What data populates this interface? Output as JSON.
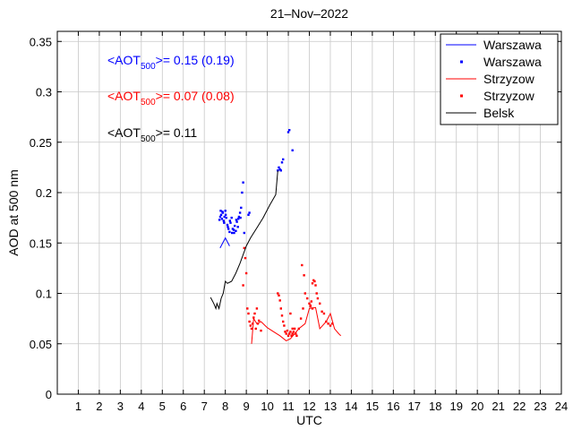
{
  "chart_data": {
    "type": "scatter",
    "title": "21–Nov–2022",
    "xlabel": "UTC",
    "ylabel": "AOD at 500 nm",
    "xlim": [
      0,
      24
    ],
    "ylim": [
      0,
      0.36
    ],
    "xticks": [
      "1",
      "2",
      "3",
      "4",
      "5",
      "6",
      "7",
      "8",
      "9",
      "10",
      "11",
      "12",
      "13",
      "14",
      "15",
      "16",
      "17",
      "18",
      "19",
      "20",
      "21",
      "22",
      "23",
      "24"
    ],
    "yticks": [
      "0",
      "0.05",
      "0.1",
      "0.15",
      "0.2",
      "0.25",
      "0.3",
      "0.35"
    ],
    "grid": true,
    "legend_position": "top-right",
    "annotations": [
      {
        "pre": "<AOT",
        "sub": "500",
        "post": ">= 0.15 (0.19)",
        "color": "#0000ff"
      },
      {
        "pre": "<AOT",
        "sub": "500",
        "post": ">= 0.07 (0.08)",
        "color": "#ff0000"
      },
      {
        "pre": "<AOT",
        "sub": "500",
        "post": ">= 0.11",
        "color": "#000000"
      }
    ],
    "series": [
      {
        "name": "Warszawa",
        "style": "line",
        "color": "#0000ff",
        "x": [
          7.75,
          8.0,
          8.2
        ],
        "y": [
          0.145,
          0.155,
          0.147
        ]
      },
      {
        "name": "Warszawa",
        "style": "points",
        "color": "#0000ff",
        "x": [
          7.72,
          7.76,
          7.8,
          7.84,
          7.88,
          7.92,
          7.96,
          8.0,
          8.05,
          8.1,
          8.15,
          8.2,
          8.25,
          8.3,
          8.35,
          8.4,
          8.45,
          8.5,
          8.55,
          8.6,
          8.65,
          8.7,
          8.75,
          7.78,
          7.86,
          7.94,
          8.02,
          8.12,
          8.22,
          8.32,
          8.42,
          8.52,
          8.62,
          8.72,
          8.8,
          8.85,
          9.1,
          9.15,
          10.5,
          10.55,
          10.6,
          10.65,
          10.7,
          10.75,
          11.0,
          11.05,
          11.2,
          8.9
        ],
        "y": [
          0.173,
          0.176,
          0.178,
          0.174,
          0.18,
          0.172,
          0.176,
          0.182,
          0.175,
          0.168,
          0.164,
          0.161,
          0.17,
          0.175,
          0.164,
          0.163,
          0.167,
          0.162,
          0.171,
          0.166,
          0.176,
          0.18,
          0.185,
          0.182,
          0.181,
          0.17,
          0.178,
          0.166,
          0.172,
          0.16,
          0.16,
          0.173,
          0.174,
          0.175,
          0.2,
          0.21,
          0.178,
          0.18,
          0.222,
          0.225,
          0.223,
          0.222,
          0.23,
          0.233,
          0.26,
          0.262,
          0.242,
          0.16
        ]
      },
      {
        "name": "Strzyzow",
        "style": "line",
        "color": "#ff0000",
        "x": [
          9.25,
          9.35,
          9.5,
          9.7,
          10.0,
          10.3,
          10.6,
          10.9,
          11.1,
          11.3,
          11.5,
          11.8,
          12.0,
          12.3,
          12.5,
          12.8,
          13.0,
          13.2,
          13.4,
          13.5
        ],
        "y": [
          0.05,
          0.075,
          0.07,
          0.072,
          0.066,
          0.062,
          0.058,
          0.053,
          0.055,
          0.06,
          0.065,
          0.07,
          0.085,
          0.086,
          0.065,
          0.072,
          0.08,
          0.065,
          0.06,
          0.058
        ]
      },
      {
        "name": "Strzyzow",
        "style": "points",
        "color": "#ff0000",
        "x": [
          8.85,
          8.9,
          8.95,
          9.0,
          9.05,
          9.1,
          9.15,
          9.2,
          9.25,
          9.3,
          9.35,
          9.4,
          9.5,
          9.6,
          9.7,
          10.5,
          10.55,
          10.6,
          10.65,
          10.7,
          10.75,
          10.8,
          10.85,
          10.9,
          10.95,
          11.0,
          11.05,
          11.1,
          11.15,
          11.2,
          11.25,
          11.3,
          11.35,
          11.4,
          11.5,
          11.6,
          11.7,
          11.8,
          11.9,
          12.0,
          12.05,
          12.1,
          12.15,
          12.2,
          12.25,
          12.3,
          12.35,
          12.4,
          12.5,
          12.6,
          12.7,
          12.8,
          12.9,
          13.0,
          13.1,
          11.1,
          11.2,
          11.65,
          11.75,
          12.05,
          12.15,
          9.45,
          9.55
        ],
        "y": [
          0.108,
          0.145,
          0.135,
          0.12,
          0.085,
          0.08,
          0.072,
          0.068,
          0.065,
          0.07,
          0.076,
          0.08,
          0.085,
          0.073,
          0.063,
          0.1,
          0.098,
          0.093,
          0.085,
          0.078,
          0.072,
          0.068,
          0.062,
          0.06,
          0.063,
          0.058,
          0.06,
          0.062,
          0.058,
          0.06,
          0.062,
          0.065,
          0.06,
          0.058,
          0.065,
          0.075,
          0.085,
          0.1,
          0.095,
          0.09,
          0.087,
          0.092,
          0.11,
          0.113,
          0.112,
          0.108,
          0.1,
          0.095,
          0.09,
          0.082,
          0.08,
          0.072,
          0.07,
          0.068,
          0.07,
          0.08,
          0.065,
          0.128,
          0.118,
          0.088,
          0.085,
          0.065,
          0.07
        ]
      },
      {
        "name": "Belsk",
        "style": "line",
        "color": "#000000",
        "x": [
          7.3,
          7.45,
          7.55,
          7.6,
          7.7,
          7.8,
          7.9,
          8.0,
          8.1,
          8.3,
          8.5,
          8.7,
          9.0,
          9.2,
          9.5,
          9.8,
          10.1,
          10.4,
          10.5
        ],
        "y": [
          0.096,
          0.09,
          0.085,
          0.09,
          0.085,
          0.095,
          0.1,
          0.112,
          0.11,
          0.112,
          0.12,
          0.13,
          0.147,
          0.155,
          0.165,
          0.175,
          0.187,
          0.198,
          0.222
        ]
      }
    ]
  }
}
